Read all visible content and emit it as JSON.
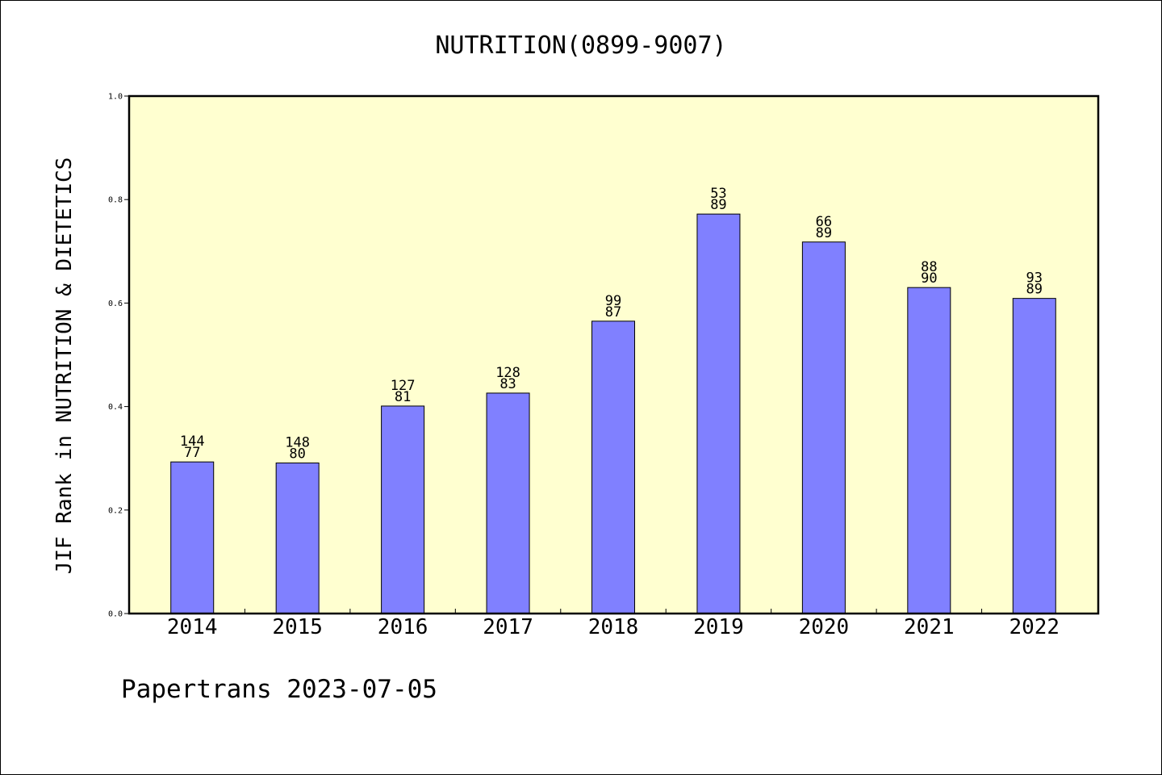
{
  "colors": {
    "plot_background": "#ffffd0",
    "bar_fill": "#8080ff",
    "axis": "#000000"
  },
  "footer": "Papertrans 2023-07-05",
  "chart_data": {
    "type": "bar",
    "title": "NUTRITION(0899-9007)",
    "xlabel": "",
    "ylabel": "JIF Rank in NUTRITION & DIETETICS",
    "ylim": [
      0,
      1.0
    ],
    "yticks": [
      "0.0",
      "0.2",
      "0.4",
      "0.6",
      "0.8",
      "1.0"
    ],
    "grid": false,
    "legend": "none",
    "categories": [
      "2014",
      "2015",
      "2016",
      "2017",
      "2018",
      "2019",
      "2020",
      "2021",
      "2022"
    ],
    "values": [
      0.293,
      0.291,
      0.401,
      0.426,
      0.565,
      0.772,
      0.718,
      0.63,
      0.609
    ],
    "annotations": [
      [
        "144",
        "77"
      ],
      [
        "148",
        "80"
      ],
      [
        "127",
        "81"
      ],
      [
        "128",
        "83"
      ],
      [
        "99",
        "87"
      ],
      [
        "53",
        "89"
      ],
      [
        "66",
        "89"
      ],
      [
        "88",
        "90"
      ],
      [
        "93",
        "89"
      ]
    ]
  }
}
